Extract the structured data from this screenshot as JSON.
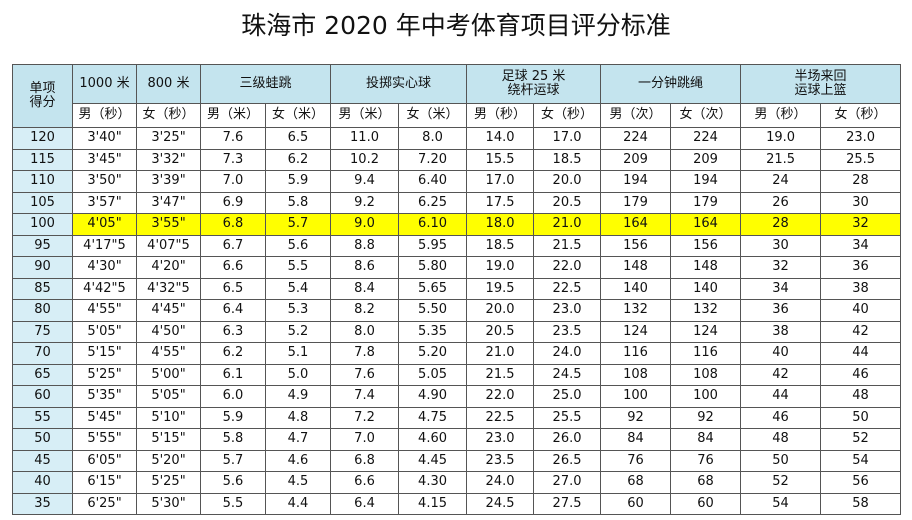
{
  "title": "珠海市 2020 年中考体育项目评分标准",
  "table": {
    "header_top": [
      [
        "单项",
        "得分"
      ],
      [
        "1000 米"
      ],
      [
        "800 米"
      ],
      [
        "三级蛙跳"
      ],
      [
        "投掷实心球"
      ],
      [
        "足球 25 米",
        "绕杆运球"
      ],
      [
        "一分钟跳绳"
      ],
      [
        "半场来回",
        "运球上篮"
      ]
    ],
    "header_sub": [
      "男（秒）",
      "女（秒）",
      "男（米）",
      "女（米）",
      "男（米）",
      "女（米）",
      "男（秒）",
      "女（秒）",
      "男（次）",
      "女（次）",
      "男（秒）",
      "女（秒）"
    ],
    "rows": [
      [
        "120",
        "3'40\"",
        "3'25\"",
        "7.6",
        "6.5",
        "11.0",
        "8.0",
        "14.0",
        "17.0",
        "224",
        "224",
        "19.0",
        "23.0"
      ],
      [
        "115",
        "3'45\"",
        "3'32\"",
        "7.3",
        "6.2",
        "10.2",
        "7.20",
        "15.5",
        "18.5",
        "209",
        "209",
        "21.5",
        "25.5"
      ],
      [
        "110",
        "3'50\"",
        "3'39\"",
        "7.0",
        "5.9",
        "9.4",
        "6.40",
        "17.0",
        "20.0",
        "194",
        "194",
        "24",
        "28"
      ],
      [
        "105",
        "3'57\"",
        "3'47\"",
        "6.9",
        "5.8",
        "9.2",
        "6.25",
        "17.5",
        "20.5",
        "179",
        "179",
        "26",
        "30"
      ],
      [
        "100",
        "4'05\"",
        "3'55\"",
        "6.8",
        "5.7",
        "9.0",
        "6.10",
        "18.0",
        "21.0",
        "164",
        "164",
        "28",
        "32"
      ],
      [
        "95",
        "4'17\"5",
        "4'07\"5",
        "6.7",
        "5.6",
        "8.8",
        "5.95",
        "18.5",
        "21.5",
        "156",
        "156",
        "30",
        "34"
      ],
      [
        "90",
        "4'30\"",
        "4'20\"",
        "6.6",
        "5.5",
        "8.6",
        "5.80",
        "19.0",
        "22.0",
        "148",
        "148",
        "32",
        "36"
      ],
      [
        "85",
        "4'42\"5",
        "4'32\"5",
        "6.5",
        "5.4",
        "8.4",
        "5.65",
        "19.5",
        "22.5",
        "140",
        "140",
        "34",
        "38"
      ],
      [
        "80",
        "4'55\"",
        "4'45\"",
        "6.4",
        "5.3",
        "8.2",
        "5.50",
        "20.0",
        "23.0",
        "132",
        "132",
        "36",
        "40"
      ],
      [
        "75",
        "5'05\"",
        "4'50\"",
        "6.3",
        "5.2",
        "8.0",
        "5.35",
        "20.5",
        "23.5",
        "124",
        "124",
        "38",
        "42"
      ],
      [
        "70",
        "5'15\"",
        "4'55\"",
        "6.2",
        "5.1",
        "7.8",
        "5.20",
        "21.0",
        "24.0",
        "116",
        "116",
        "40",
        "44"
      ],
      [
        "65",
        "5'25\"",
        "5'00\"",
        "6.1",
        "5.0",
        "7.6",
        "5.05",
        "21.5",
        "24.5",
        "108",
        "108",
        "42",
        "46"
      ],
      [
        "60",
        "5'35\"",
        "5'05\"",
        "6.0",
        "4.9",
        "7.4",
        "4.90",
        "22.0",
        "25.0",
        "100",
        "100",
        "44",
        "48"
      ],
      [
        "55",
        "5'45\"",
        "5'10\"",
        "5.9",
        "4.8",
        "7.2",
        "4.75",
        "22.5",
        "25.5",
        "92",
        "92",
        "46",
        "50"
      ],
      [
        "50",
        "5'55\"",
        "5'15\"",
        "5.8",
        "4.7",
        "7.0",
        "4.60",
        "23.0",
        "26.0",
        "84",
        "84",
        "48",
        "52"
      ],
      [
        "45",
        "6'05\"",
        "5'20\"",
        "5.7",
        "4.6",
        "6.8",
        "4.45",
        "23.5",
        "26.5",
        "76",
        "76",
        "50",
        "54"
      ],
      [
        "40",
        "6'15\"",
        "5'25\"",
        "5.6",
        "4.5",
        "6.6",
        "4.30",
        "24.0",
        "27.0",
        "68",
        "68",
        "52",
        "56"
      ],
      [
        "35",
        "6'25\"",
        "5'30\"",
        "5.5",
        "4.4",
        "6.4",
        "4.15",
        "24.5",
        "27.5",
        "60",
        "60",
        "54",
        "58"
      ]
    ]
  }
}
